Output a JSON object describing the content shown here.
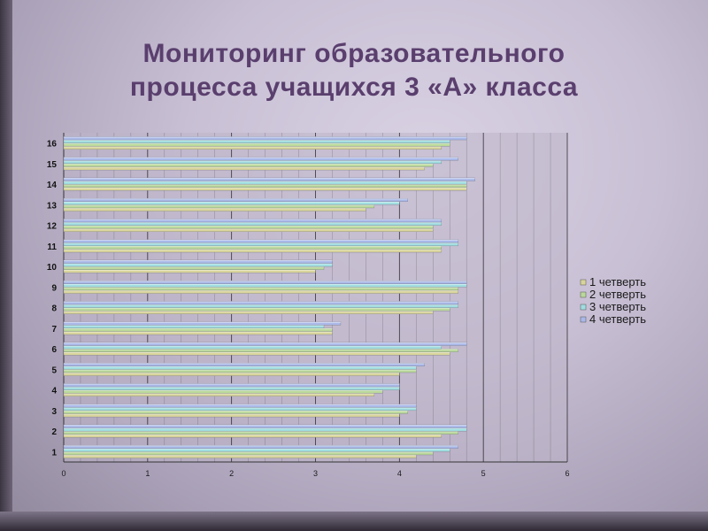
{
  "title": {
    "line1": "Мониторинг образовательного",
    "line2": "процесса учащихся 3 «А» класса"
  },
  "colors": {
    "series": [
      "#d8d49a",
      "#b9d89a",
      "#9fdde0",
      "#a9b8e8"
    ],
    "grid": "#000000",
    "plot_bg": "#bdb4c8"
  },
  "chart_data": {
    "type": "bar",
    "orientation": "horizontal",
    "categories": [
      "1",
      "2",
      "3",
      "4",
      "5",
      "6",
      "7",
      "8",
      "9",
      "10",
      "11",
      "12",
      "13",
      "14",
      "15",
      "16"
    ],
    "series": [
      {
        "name": "1 четверть",
        "values": [
          4.2,
          4.5,
          4.0,
          3.7,
          4.0,
          4.6,
          3.2,
          4.4,
          4.7,
          3.0,
          4.5,
          4.4,
          3.6,
          4.8,
          4.3,
          4.5
        ]
      },
      {
        "name": "2 четверть",
        "values": [
          4.4,
          4.7,
          4.1,
          3.8,
          4.2,
          4.7,
          3.2,
          4.6,
          4.7,
          3.1,
          4.5,
          4.4,
          3.7,
          4.8,
          4.4,
          4.6
        ]
      },
      {
        "name": "3 четверть",
        "values": [
          4.6,
          4.8,
          4.2,
          4.0,
          4.2,
          4.5,
          3.1,
          4.7,
          4.8,
          3.2,
          4.7,
          4.5,
          4.0,
          4.8,
          4.5,
          4.6
        ]
      },
      {
        "name": "4 четверть",
        "values": [
          4.7,
          4.8,
          4.2,
          4.0,
          4.3,
          4.8,
          3.3,
          4.7,
          4.8,
          3.2,
          4.7,
          4.5,
          4.1,
          4.9,
          4.7,
          4.8
        ]
      }
    ],
    "xlim": [
      0,
      6
    ],
    "xticks": [
      0,
      1,
      2,
      3,
      4,
      5,
      6
    ],
    "grid": true,
    "legend": "right"
  }
}
